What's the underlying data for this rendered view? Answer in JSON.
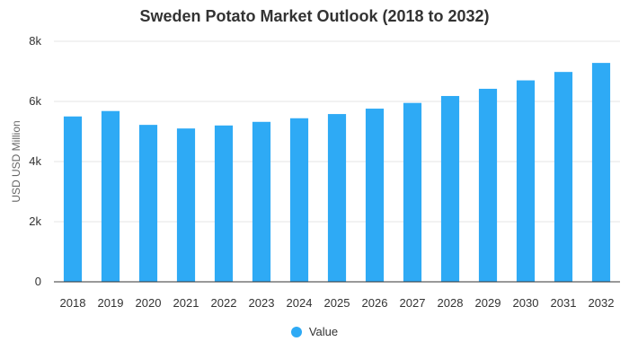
{
  "chart_data": {
    "type": "bar",
    "title": "Sweden Potato Market Outlook (2018 to 2032)",
    "xlabel": "",
    "ylabel": "USD USD Million",
    "categories": [
      "2018",
      "2019",
      "2020",
      "2021",
      "2022",
      "2023",
      "2024",
      "2025",
      "2026",
      "2027",
      "2028",
      "2029",
      "2030",
      "2031",
      "2032"
    ],
    "series": [
      {
        "name": "Value",
        "color": "#2eaaf5",
        "values": [
          5500,
          5680,
          5220,
          5100,
          5200,
          5320,
          5440,
          5580,
          5760,
          5950,
          6180,
          6420,
          6700,
          6980,
          7280
        ]
      }
    ],
    "ylim": [
      0,
      8000
    ],
    "yticks": [
      0,
      2000,
      4000,
      6000,
      8000
    ],
    "ytick_labels": [
      "0",
      "2k",
      "4k",
      "6k",
      "8k"
    ],
    "grid": true,
    "legend_position": "bottom"
  }
}
